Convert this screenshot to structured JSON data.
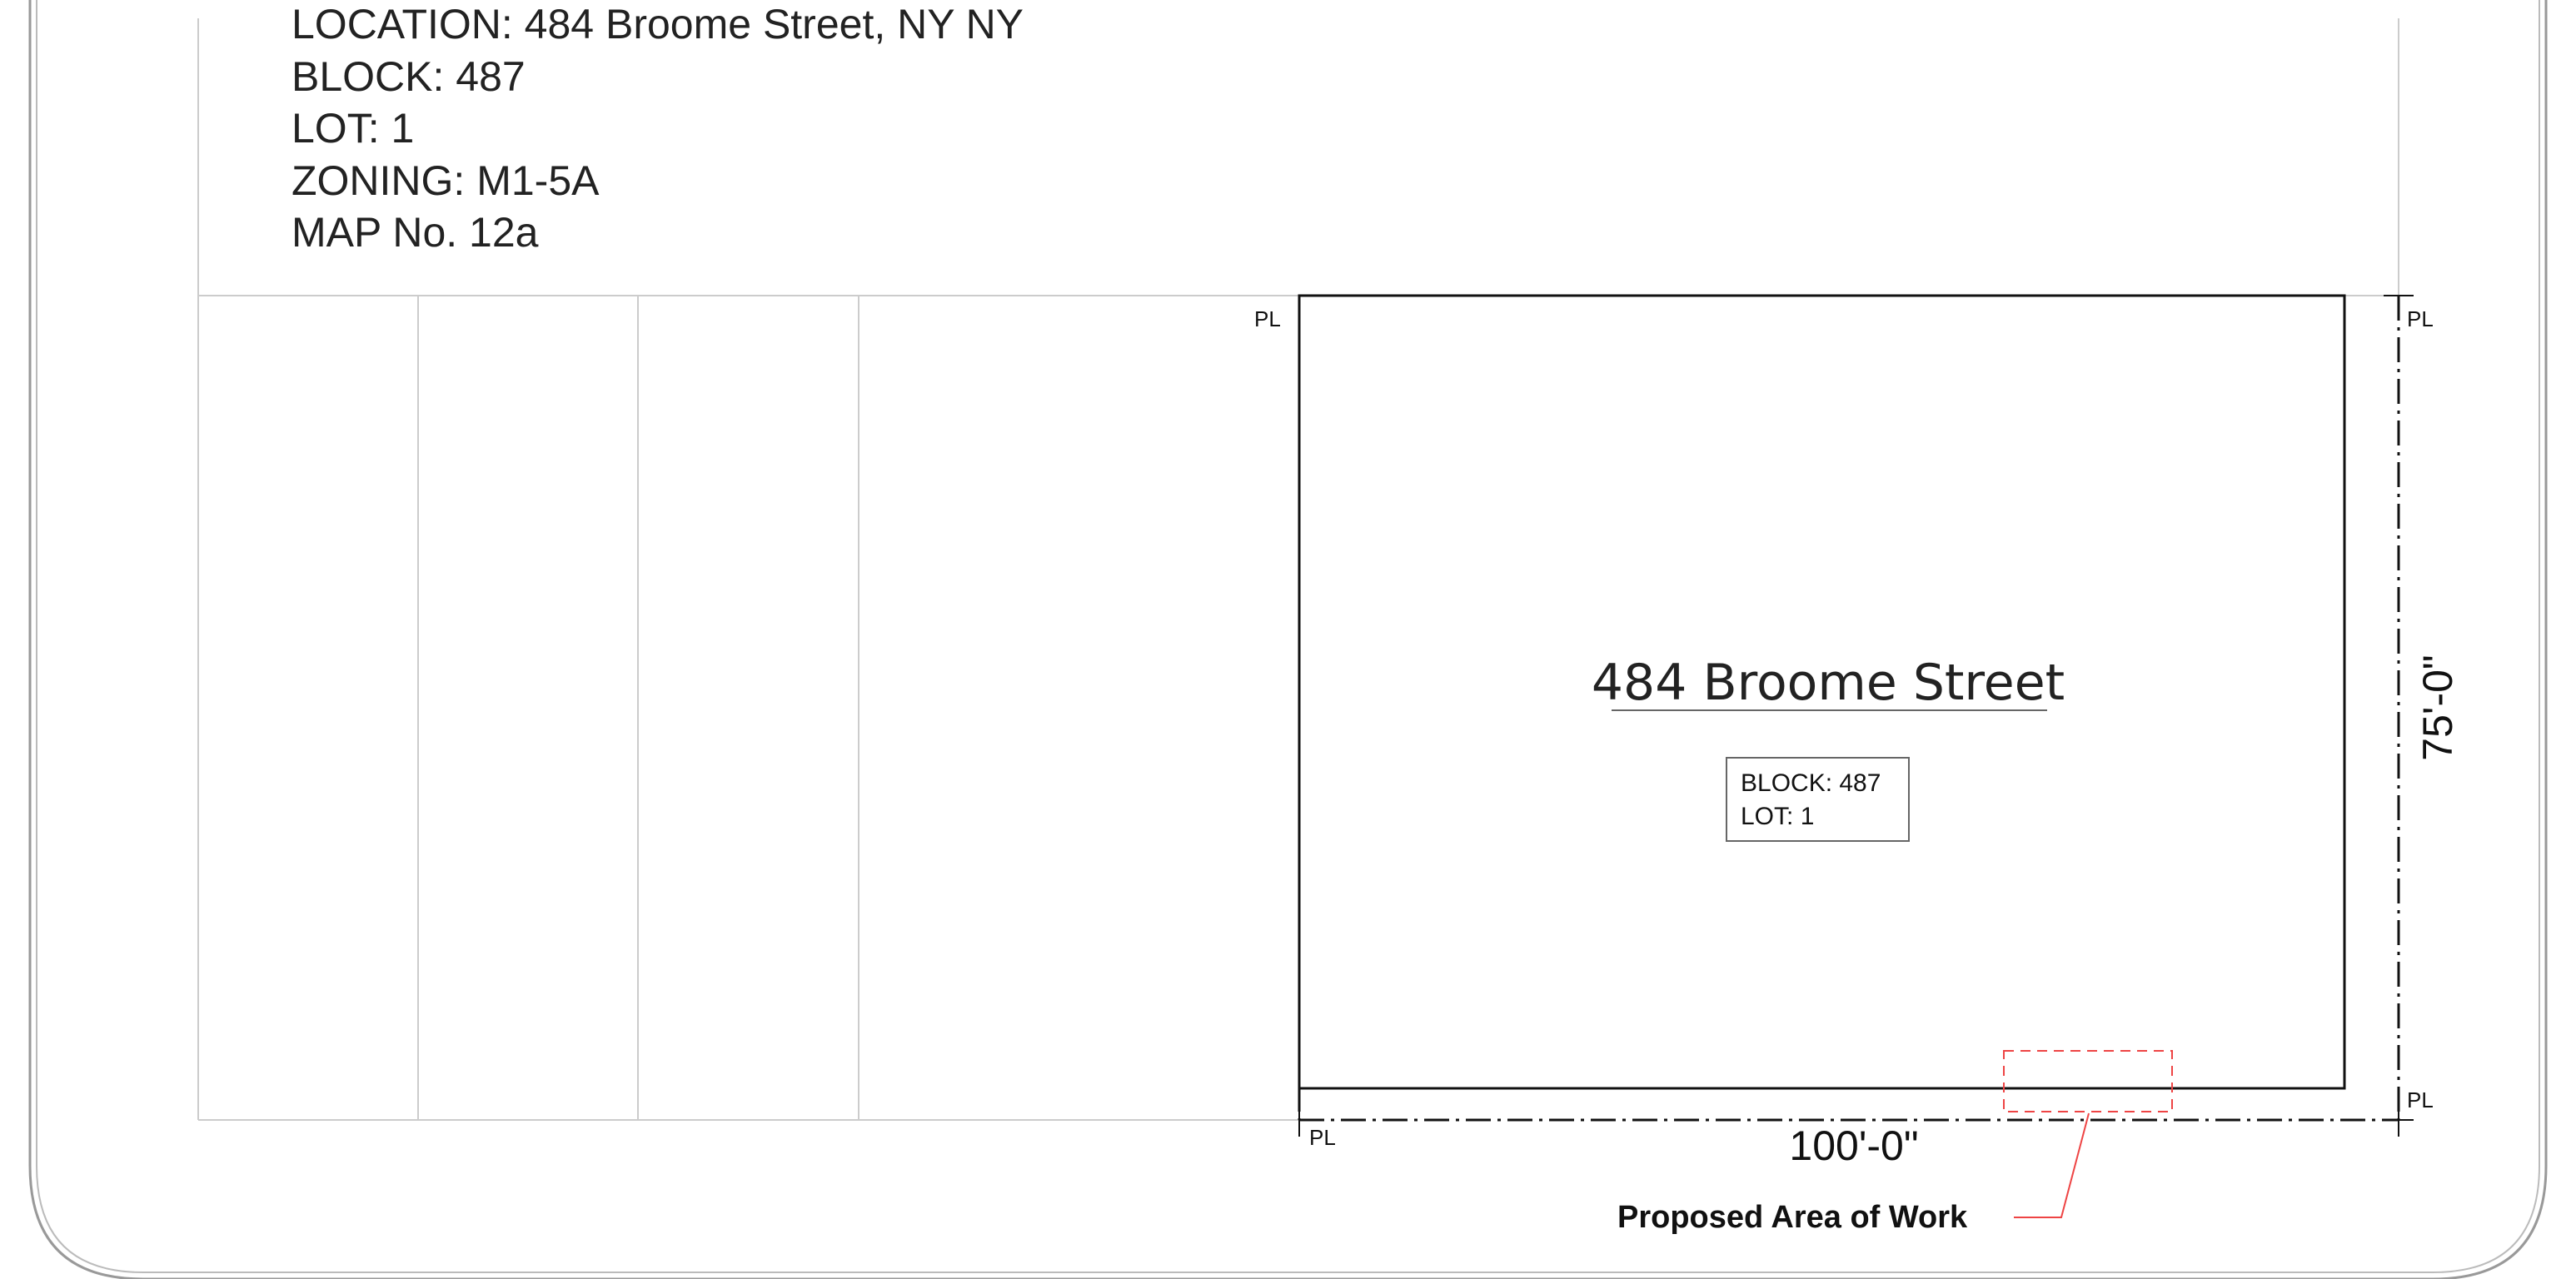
{
  "site_info": {
    "location": "LOCATION: 484 Broome Street, NY NY",
    "block": "BLOCK: 487",
    "lot": "LOT: 1",
    "zoning": "ZONING: M1-5A",
    "map": "MAP No. 12a"
  },
  "property_line_label": "PL",
  "building": {
    "name": "484 Broome Street",
    "tag_block": "BLOCK: 487",
    "tag_lot": "LOT: 1"
  },
  "dimensions": {
    "width": "100'-0\"",
    "depth": "75'-0\""
  },
  "callout": {
    "label": "Proposed Area of Work",
    "color": "#ee4444"
  },
  "colors": {
    "frame": "#999999",
    "grid_line": "#cccccc",
    "building_outline": "#111111"
  }
}
